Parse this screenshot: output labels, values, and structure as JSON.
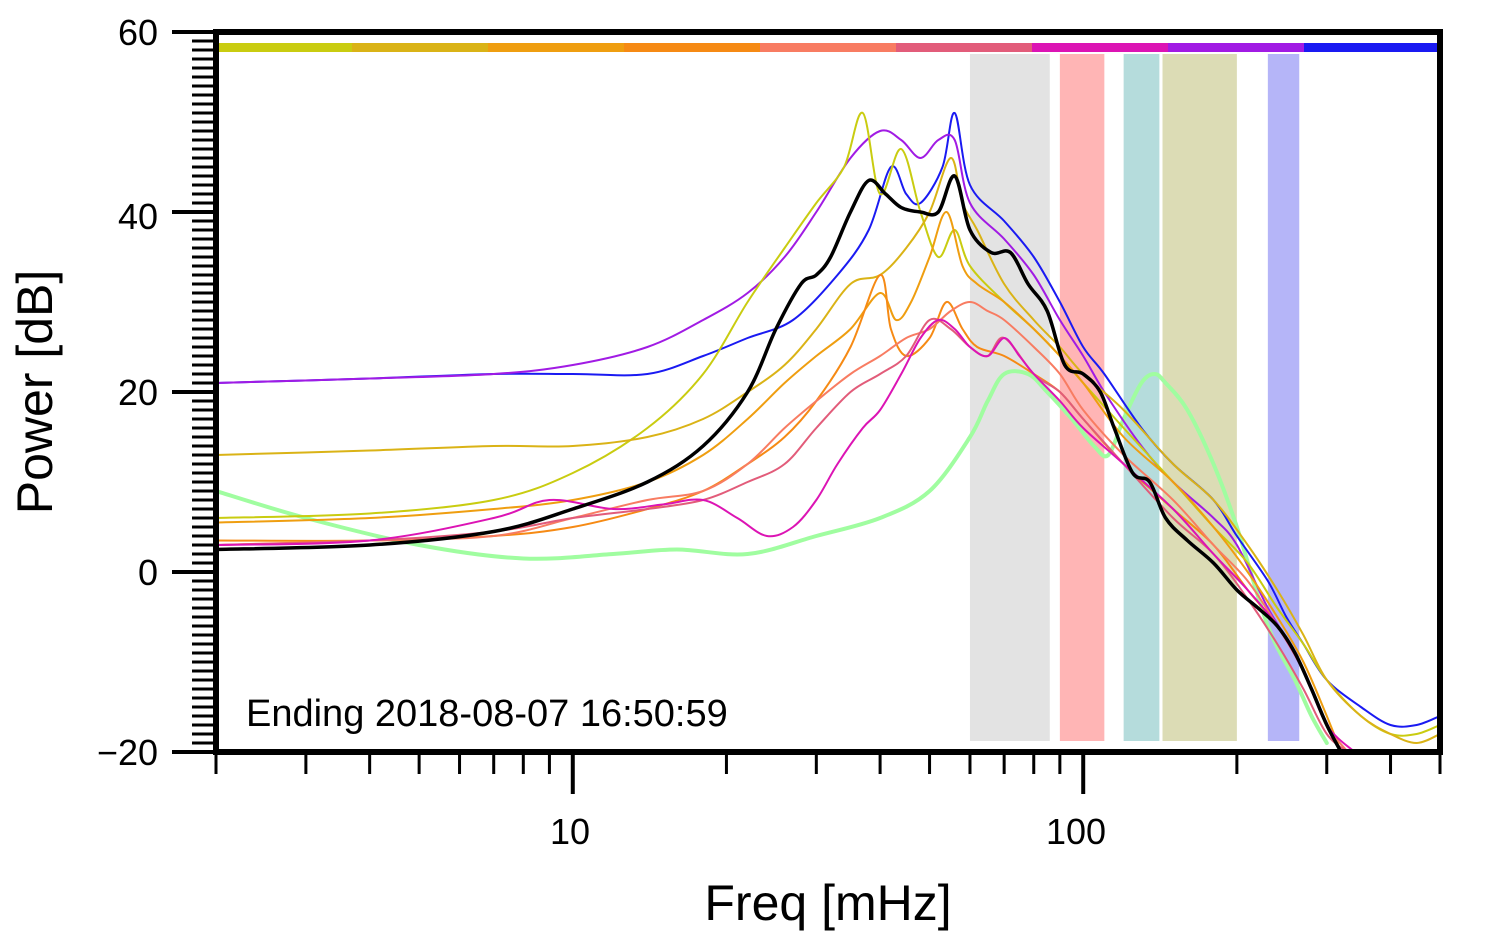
{
  "chart_data": {
    "type": "line",
    "title": "",
    "xlabel": "Freq [mHz]",
    "ylabel": "Power [dB]",
    "x_scale": "log",
    "xlim": [
      2,
      500
    ],
    "ylim": [
      -20,
      60
    ],
    "x_tick_labels": [
      "10",
      "100"
    ],
    "y_tick_labels": [
      "60",
      "40",
      "20",
      "0",
      "−20"
    ],
    "grid": false,
    "legend": "none",
    "annotation": "Ending 2018-08-07 16:50:59",
    "colorbar_colors": [
      "#c9cc10",
      "#dab316",
      "#ef9e10",
      "#f68a14",
      "#f87c62",
      "#e25c7a",
      "#dc14b4",
      "#a11be4",
      "#1a1af2"
    ],
    "shaded_bands": [
      {
        "x0": 60,
        "x1": 86,
        "color": "#e3e3e3"
      },
      {
        "x0": 90,
        "x1": 110,
        "color": "#ffb5b5"
      },
      {
        "x0": 120,
        "x1": 141,
        "color": "#b5dcdc"
      },
      {
        "x0": 143,
        "x1": 200,
        "color": "#dcdcb5"
      },
      {
        "x0": 230,
        "x1": 265,
        "color": "#b5b5f8"
      }
    ],
    "series": [
      {
        "color": "#a0fda0",
        "width": 4,
        "x": [
          2,
          3,
          5,
          8,
          12,
          16,
          22,
          30,
          40,
          50,
          60,
          65,
          70,
          78,
          85,
          95,
          105,
          112,
          120,
          130,
          138,
          145,
          160,
          180,
          200,
          230,
          260,
          280,
          300
        ],
        "y": [
          9,
          6,
          3,
          1.5,
          2,
          2.5,
          2,
          4,
          6,
          9,
          15,
          19,
          22,
          22,
          20,
          17,
          14,
          13,
          17,
          21,
          22,
          21,
          18,
          12,
          5,
          -6,
          -12,
          -16,
          -19
        ]
      },
      {
        "color": "#1a1af2",
        "width": 2,
        "x": [
          2,
          4,
          7,
          10,
          14,
          18,
          22,
          27,
          33,
          38,
          42,
          45,
          48,
          53,
          56,
          60,
          70,
          80,
          90,
          100,
          110,
          130,
          150,
          180,
          200,
          230,
          250,
          270,
          300,
          350,
          400,
          450,
          500
        ],
        "y": [
          21,
          21.5,
          22,
          22,
          22,
          24,
          26,
          28,
          33,
          38,
          45,
          42,
          41,
          45,
          51,
          43,
          39,
          35,
          30,
          25,
          22,
          16,
          12,
          8,
          4,
          -1,
          -5,
          -8,
          -12,
          -15,
          -17,
          -17,
          -16
        ]
      },
      {
        "color": "#a11be4",
        "width": 2,
        "x": [
          2,
          4,
          7,
          10,
          14,
          18,
          22,
          26,
          30,
          35,
          40,
          44,
          48,
          52,
          56,
          60,
          70,
          80,
          90,
          100,
          110,
          130,
          150,
          180,
          200,
          230,
          260,
          290,
          320
        ],
        "y": [
          21,
          21.5,
          22,
          23,
          25,
          28,
          31,
          35,
          40,
          46,
          49,
          48,
          46,
          48,
          48,
          41,
          37,
          33,
          28,
          24,
          20,
          14,
          10,
          6,
          3,
          -4,
          -9,
          -15,
          -20
        ]
      },
      {
        "color": "#c9cc10",
        "width": 2,
        "x": [
          2,
          4,
          7,
          10,
          14,
          18,
          22,
          26,
          30,
          34,
          37,
          40,
          44,
          48,
          52,
          56,
          60,
          70,
          80,
          90,
          100,
          120,
          150,
          180,
          210,
          240,
          270,
          300,
          350,
          400,
          450,
          500
        ],
        "y": [
          6,
          6.5,
          8,
          11,
          16,
          22,
          30,
          36,
          41,
          45,
          51,
          42,
          47,
          40,
          35,
          38,
          34,
          30,
          27,
          24,
          21,
          16,
          10,
          5,
          1,
          -4,
          -8,
          -12,
          -16,
          -18,
          -18,
          -17
        ]
      },
      {
        "color": "#dab316",
        "width": 2,
        "x": [
          2,
          4,
          7,
          10,
          14,
          18,
          22,
          26,
          30,
          35,
          40,
          45,
          50,
          55,
          58,
          62,
          70,
          80,
          90,
          100,
          120,
          150,
          180,
          210,
          240,
          270,
          300,
          350,
          400,
          450,
          500
        ],
        "y": [
          13,
          13.5,
          14,
          14,
          15,
          17,
          20,
          23,
          27,
          32,
          33,
          36,
          40,
          46,
          41,
          38,
          32,
          28,
          25,
          22,
          18,
          12,
          8,
          3,
          -2,
          -7,
          -12,
          -16,
          -18,
          -19,
          -18
        ]
      },
      {
        "color": "#ef9e10",
        "width": 2,
        "x": [
          2,
          4,
          7,
          10,
          14,
          18,
          22,
          26,
          30,
          35,
          40,
          43,
          46,
          50,
          54,
          58,
          62,
          70,
          80,
          90,
          100,
          120,
          150,
          180,
          210,
          240,
          270,
          300,
          320
        ],
        "y": [
          5.5,
          6,
          7,
          8,
          10,
          13,
          17,
          21,
          24,
          27,
          31,
          28,
          30,
          35,
          40,
          34,
          32,
          30,
          27,
          24,
          21,
          15,
          10,
          5,
          0,
          -5,
          -10,
          -16,
          -20
        ]
      },
      {
        "color": "#f68a14",
        "width": 2,
        "x": [
          2,
          4,
          7,
          10,
          14,
          18,
          22,
          26,
          30,
          35,
          40,
          42,
          45,
          50,
          54,
          58,
          62,
          70,
          80,
          90,
          100,
          120,
          150,
          180,
          210,
          240,
          270,
          300,
          320
        ],
        "y": [
          3.5,
          3.5,
          4,
          5,
          7,
          9,
          12,
          15,
          19,
          25,
          33,
          27,
          24,
          26,
          30,
          27,
          25,
          24,
          22,
          20,
          17,
          12,
          7,
          3,
          -2,
          -6,
          -11,
          -17,
          -20
        ]
      },
      {
        "color": "#f87c62",
        "width": 2,
        "x": [
          2,
          4,
          7,
          10,
          14,
          18,
          22,
          26,
          30,
          35,
          40,
          45,
          50,
          55,
          60,
          65,
          70,
          80,
          90,
          100,
          120,
          150,
          180,
          210,
          240,
          270,
          300,
          330
        ],
        "y": [
          3,
          3.5,
          4,
          6,
          8,
          9,
          12,
          16,
          19,
          22,
          24,
          26,
          27,
          29,
          30,
          29,
          28,
          25,
          22,
          18,
          13,
          8,
          3,
          -1,
          -6,
          -11,
          -17,
          -20
        ]
      },
      {
        "color": "#e25c7a",
        "width": 2,
        "x": [
          2,
          4,
          7,
          10,
          14,
          18,
          22,
          26,
          30,
          35,
          40,
          45,
          50,
          55,
          60,
          65,
          70,
          80,
          90,
          100,
          120,
          150,
          180,
          210,
          240,
          270,
          300,
          330
        ],
        "y": [
          3,
          3.5,
          4.5,
          6,
          7,
          8,
          10,
          12,
          16,
          20,
          22,
          24,
          28,
          27,
          25,
          24,
          26,
          22,
          20,
          17,
          12,
          6,
          2,
          -3,
          -8,
          -13,
          -18,
          -20
        ]
      },
      {
        "color": "#dc14b4",
        "width": 2,
        "x": [
          2,
          4,
          7,
          9,
          12,
          15,
          18,
          21,
          24,
          27,
          30,
          33,
          37,
          40,
          44,
          48,
          52,
          56,
          60,
          65,
          70,
          75,
          80,
          90,
          100,
          120,
          150,
          180,
          210,
          240,
          270,
          300,
          340
        ],
        "y": [
          3,
          3.5,
          6,
          8,
          7,
          7.5,
          8,
          6,
          4,
          5,
          8,
          12,
          16,
          18,
          22,
          26,
          28,
          27,
          25,
          24,
          26,
          24,
          22,
          19,
          16,
          12,
          7,
          2,
          -2,
          -6,
          -11,
          -17,
          -20
        ]
      },
      {
        "color": "#000000",
        "width": 3.5,
        "x": [
          2,
          4,
          7,
          10,
          14,
          18,
          22,
          25,
          28,
          30,
          32,
          35,
          38,
          41,
          44,
          48,
          52,
          56,
          60,
          66,
          72,
          78,
          85,
          92,
          100,
          108,
          115,
          125,
          135,
          145,
          160,
          180,
          200,
          220,
          240,
          260,
          280,
          300,
          320
        ],
        "y": [
          2.5,
          3,
          4.5,
          7,
          10,
          14,
          20,
          27,
          32,
          33,
          35,
          40,
          43.5,
          42,
          40.5,
          40,
          40,
          44,
          38,
          35.5,
          35.5,
          32,
          29,
          23,
          22,
          20,
          16,
          11,
          10,
          6,
          3.5,
          1,
          -2,
          -4,
          -6,
          -9,
          -13,
          -17,
          -20
        ]
      }
    ]
  }
}
